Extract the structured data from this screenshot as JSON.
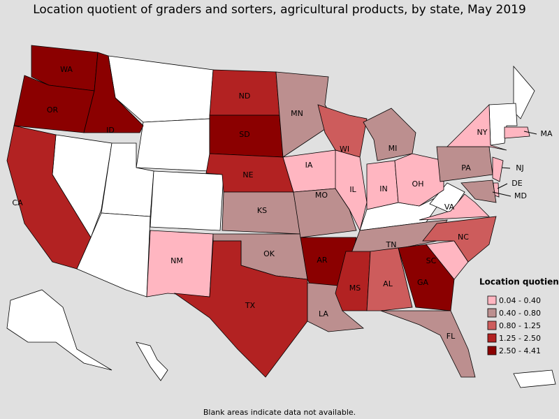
{
  "title": "Location quotient of graders and sorters, agricultural products, by state, May 2019",
  "legend": {
    "title": "Location quotient",
    "items": [
      {
        "label": "0.04 - 0.40",
        "color": "#ffb6c1"
      },
      {
        "label": "0.40 - 0.80",
        "color": "#bc8f8f"
      },
      {
        "label": "0.80 - 1.25",
        "color": "#cd5c5c"
      },
      {
        "label": "1.25 - 2.50",
        "color": "#b22222"
      },
      {
        "label": "2.50 - 4.41",
        "color": "#8b0000"
      }
    ]
  },
  "states": [
    {
      "label": "WA",
      "color": "#8b0000"
    },
    {
      "label": "OR",
      "color": "#8b0000"
    },
    {
      "label": "ID",
      "color": "#8b0000"
    },
    {
      "label": "CA",
      "color": "#b22222"
    },
    {
      "label": "NM",
      "color": "#ffb6c1"
    },
    {
      "label": "ND",
      "color": "#b22222"
    },
    {
      "label": "SD",
      "color": "#8b0000"
    },
    {
      "label": "NE",
      "color": "#b22222"
    },
    {
      "label": "KS",
      "color": "#bc8f8f"
    },
    {
      "label": "OK",
      "color": "#bc8f8f"
    },
    {
      "label": "TX",
      "color": "#b22222"
    },
    {
      "label": "MN",
      "color": "#bc8f8f"
    },
    {
      "label": "IA",
      "color": "#ffb6c1"
    },
    {
      "label": "MO",
      "color": "#bc8f8f"
    },
    {
      "label": "AR",
      "color": "#8b0000"
    },
    {
      "label": "LA",
      "color": "#bc8f8f"
    },
    {
      "label": "WI",
      "color": "#cd5c5c"
    },
    {
      "label": "IL",
      "color": "#ffb6c1"
    },
    {
      "label": "MI",
      "color": "#bc8f8f"
    },
    {
      "label": "IN",
      "color": "#ffb6c1"
    },
    {
      "label": "OH",
      "color": "#ffb6c1"
    },
    {
      "label": "TN",
      "color": "#bc8f8f"
    },
    {
      "label": "MS",
      "color": "#b22222"
    },
    {
      "label": "AL",
      "color": "#cd5c5c"
    },
    {
      "label": "GA",
      "color": "#8b0000"
    },
    {
      "label": "FL",
      "color": "#bc8f8f"
    },
    {
      "label": "SC",
      "color": "#ffb6c1"
    },
    {
      "label": "NC",
      "color": "#cd5c5c"
    },
    {
      "label": "VA",
      "color": "#ffb6c1"
    },
    {
      "label": "PA",
      "color": "#bc8f8f"
    },
    {
      "label": "NY",
      "color": "#ffb6c1"
    },
    {
      "label": "NJ",
      "color": "#ffb6c1"
    },
    {
      "label": "DE",
      "color": "#ffb6c1"
    },
    {
      "label": "MD",
      "color": "#bc8f8f"
    },
    {
      "label": "MA",
      "color": "#ffb6c1"
    }
  ],
  "note": "Blank areas indicate data not available."
}
